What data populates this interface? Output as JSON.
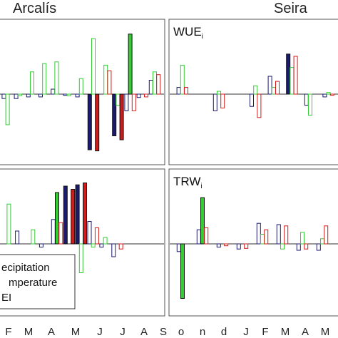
{
  "header": {
    "left_title": "Arcalís",
    "right_title": "Seira"
  },
  "legend": {
    "items": [
      "ecipitation",
      "mperature",
      "EI"
    ]
  },
  "chart_data": [
    {
      "type": "bar",
      "site": "Arcalís",
      "panel": "WUE",
      "months_visible": [
        "F",
        "M",
        "A",
        "M",
        "J",
        "J",
        "A",
        "S"
      ],
      "bars": [
        {
          "m": 0,
          "s": 0,
          "v": -0.08,
          "f": false
        },
        {
          "m": 0,
          "s": 1,
          "v": -0.55,
          "f": false
        },
        {
          "m": 1,
          "s": 0,
          "v": -0.08,
          "f": false
        },
        {
          "m": 1,
          "s": 1,
          "v": -0.03,
          "f": false
        },
        {
          "m": 2,
          "s": 0,
          "v": -0.05,
          "f": false
        },
        {
          "m": 2,
          "s": 1,
          "v": 0.4,
          "f": false
        },
        {
          "m": 3,
          "s": 0,
          "v": -0.05,
          "f": false
        },
        {
          "m": 3,
          "s": 1,
          "v": 0.55,
          "f": false
        },
        {
          "m": 4,
          "s": 0,
          "v": 0.09,
          "f": false
        },
        {
          "m": 4,
          "s": 1,
          "v": 0.58,
          "f": false
        },
        {
          "m": 5,
          "s": 0,
          "v": -0.02,
          "f": false
        },
        {
          "m": 5,
          "s": 1,
          "v": -0.03,
          "f": false
        },
        {
          "m": 6,
          "s": 0,
          "v": -0.05,
          "f": false
        },
        {
          "m": 6,
          "s": 1,
          "v": 0.28,
          "f": false
        },
        {
          "m": 7,
          "s": 0,
          "v": -1.0,
          "f": true
        },
        {
          "m": 7,
          "s": 1,
          "v": 1.0,
          "f": false
        },
        {
          "m": 7,
          "s": 2,
          "v": -1.02,
          "f": true
        },
        {
          "m": 8,
          "s": 0,
          "v": 0.0,
          "f": false
        },
        {
          "m": 8,
          "s": 1,
          "v": 0.52,
          "f": false
        },
        {
          "m": 8,
          "s": 2,
          "v": 0.42,
          "f": false
        },
        {
          "m": 9,
          "s": 0,
          "v": -0.75,
          "f": true
        },
        {
          "m": 9,
          "s": 1,
          "v": -0.2,
          "f": false
        },
        {
          "m": 9,
          "s": 2,
          "v": -0.82,
          "f": true
        },
        {
          "m": 10,
          "s": 0,
          "v": -0.3,
          "f": false
        },
        {
          "m": 10,
          "s": 1,
          "v": 1.08,
          "f": true
        },
        {
          "m": 10,
          "s": 2,
          "v": -0.3,
          "f": false
        },
        {
          "m": 11,
          "s": 0,
          "v": -0.06,
          "f": false
        },
        {
          "m": 11,
          "s": 1,
          "v": 0.0,
          "f": false
        },
        {
          "m": 11,
          "s": 2,
          "v": -0.05,
          "f": false
        },
        {
          "m": 12,
          "s": 0,
          "v": 0.25,
          "f": false
        },
        {
          "m": 12,
          "s": 1,
          "v": 0.4,
          "f": false
        },
        {
          "m": 12,
          "s": 2,
          "v": 0.35,
          "f": false
        }
      ]
    },
    {
      "type": "bar",
      "site": "Seira",
      "panel": "WUE",
      "bars": [
        {
          "m": 0,
          "s": 0,
          "v": 0.12,
          "f": false
        },
        {
          "m": 0,
          "s": 1,
          "v": 0.52,
          "f": false
        },
        {
          "m": 0,
          "s": 2,
          "v": 0.12,
          "f": false
        },
        {
          "m": 1,
          "s": 0,
          "v": 0.0,
          "f": false
        },
        {
          "m": 1,
          "s": 1,
          "v": 0.0,
          "f": false
        },
        {
          "m": 1,
          "s": 2,
          "v": 0.0,
          "f": false
        },
        {
          "m": 2,
          "s": 0,
          "v": -0.3,
          "f": false
        },
        {
          "m": 2,
          "s": 1,
          "v": 0.05,
          "f": false
        },
        {
          "m": 2,
          "s": 2,
          "v": -0.25,
          "f": false
        },
        {
          "m": 3,
          "s": 0,
          "v": 0.0,
          "f": false
        },
        {
          "m": 3,
          "s": 1,
          "v": 0.0,
          "f": false
        },
        {
          "m": 3,
          "s": 2,
          "v": 0.0,
          "f": false
        },
        {
          "m": 4,
          "s": 0,
          "v": -0.22,
          "f": false
        },
        {
          "m": 4,
          "s": 1,
          "v": 0.15,
          "f": false
        },
        {
          "m": 4,
          "s": 2,
          "v": -0.42,
          "f": false
        },
        {
          "m": 5,
          "s": 0,
          "v": 0.32,
          "f": false
        },
        {
          "m": 5,
          "s": 1,
          "v": 0.12,
          "f": false
        },
        {
          "m": 5,
          "s": 2,
          "v": 0.23,
          "f": false
        },
        {
          "m": 6,
          "s": 0,
          "v": 0.72,
          "f": true
        },
        {
          "m": 6,
          "s": 1,
          "v": 0.48,
          "f": false
        },
        {
          "m": 6,
          "s": 2,
          "v": 0.68,
          "f": false
        },
        {
          "m": 7,
          "s": 0,
          "v": -0.2,
          "f": false
        },
        {
          "m": 7,
          "s": 1,
          "v": -0.38,
          "f": false
        },
        {
          "m": 7,
          "s": 2,
          "v": 0.0,
          "f": false
        },
        {
          "m": 8,
          "s": 0,
          "v": -0.05,
          "f": false
        },
        {
          "m": 8,
          "s": 1,
          "v": 0.03,
          "f": false
        },
        {
          "m": 8,
          "s": 2,
          "v": -0.02,
          "f": false
        }
      ]
    },
    {
      "type": "bar",
      "site": "Arcalís",
      "panel": "TRW",
      "bars": [
        {
          "m": 0,
          "s": 0,
          "v": 0.0,
          "f": false
        },
        {
          "m": 0,
          "s": 1,
          "v": 0.62,
          "f": false
        },
        {
          "m": 0,
          "s": 2,
          "v": 0.0,
          "f": false
        },
        {
          "m": 1,
          "s": 0,
          "v": 0.2,
          "f": false
        },
        {
          "m": 1,
          "s": 1,
          "v": 0.0,
          "f": false
        },
        {
          "m": 1,
          "s": 2,
          "v": 0.0,
          "f": false
        },
        {
          "m": 2,
          "s": 0,
          "v": 0.0,
          "f": false
        },
        {
          "m": 2,
          "s": 1,
          "v": 0.22,
          "f": false
        },
        {
          "m": 2,
          "s": 2,
          "v": 0.0,
          "f": false
        },
        {
          "m": 3,
          "s": 0,
          "v": -0.05,
          "f": false
        },
        {
          "m": 3,
          "s": 1,
          "v": 0.0,
          "f": false
        },
        {
          "m": 3,
          "s": 2,
          "v": 0.0,
          "f": false
        },
        {
          "m": 4,
          "s": 0,
          "v": 0.38,
          "f": false
        },
        {
          "m": 4,
          "s": 1,
          "v": 0.8,
          "f": true
        },
        {
          "m": 4,
          "s": 2,
          "v": 0.33,
          "f": false
        },
        {
          "m": 5,
          "s": 0,
          "v": 0.9,
          "f": true
        },
        {
          "m": 5,
          "s": 1,
          "v": 0.0,
          "f": false
        },
        {
          "m": 5,
          "s": 2,
          "v": 0.85,
          "f": true
        },
        {
          "m": 6,
          "s": 0,
          "v": 0.92,
          "f": true
        },
        {
          "m": 6,
          "s": 1,
          "v": -0.45,
          "f": false
        },
        {
          "m": 6,
          "s": 2,
          "v": 0.95,
          "f": true
        },
        {
          "m": 7,
          "s": 0,
          "v": 0.35,
          "f": false
        },
        {
          "m": 7,
          "s": 1,
          "v": -0.05,
          "f": false
        },
        {
          "m": 7,
          "s": 2,
          "v": 0.25,
          "f": false
        },
        {
          "m": 8,
          "s": 0,
          "v": -0.05,
          "f": false
        },
        {
          "m": 8,
          "s": 1,
          "v": 0.1,
          "f": false
        },
        {
          "m": 8,
          "s": 2,
          "v": 0.0,
          "f": false
        },
        {
          "m": 9,
          "s": 0,
          "v": -0.2,
          "f": false
        },
        {
          "m": 9,
          "s": 1,
          "v": 0.0,
          "f": false
        },
        {
          "m": 9,
          "s": 2,
          "v": -0.08,
          "f": false
        }
      ]
    },
    {
      "type": "bar",
      "site": "Seira",
      "panel": "TRW",
      "bars": [
        {
          "m": 0,
          "s": 0,
          "v": -0.12,
          "f": false
        },
        {
          "m": 0,
          "s": 1,
          "v": -0.85,
          "f": true
        },
        {
          "m": 0,
          "s": 2,
          "v": 0.0,
          "f": false
        },
        {
          "m": 1,
          "s": 0,
          "v": 0.22,
          "f": false
        },
        {
          "m": 1,
          "s": 1,
          "v": 0.72,
          "f": true
        },
        {
          "m": 1,
          "s": 2,
          "v": 0.25,
          "f": false
        },
        {
          "m": 2,
          "s": 0,
          "v": -0.05,
          "f": false
        },
        {
          "m": 2,
          "s": 1,
          "v": 0.0,
          "f": false
        },
        {
          "m": 2,
          "s": 2,
          "v": -0.03,
          "f": false
        },
        {
          "m": 3,
          "s": 0,
          "v": -0.08,
          "f": false
        },
        {
          "m": 3,
          "s": 1,
          "v": 0.0,
          "f": false
        },
        {
          "m": 3,
          "s": 2,
          "v": -0.07,
          "f": false
        },
        {
          "m": 4,
          "s": 0,
          "v": 0.32,
          "f": false
        },
        {
          "m": 4,
          "s": 1,
          "v": 0.15,
          "f": false
        },
        {
          "m": 4,
          "s": 2,
          "v": 0.22,
          "f": false
        },
        {
          "m": 5,
          "s": 0,
          "v": 0.3,
          "f": false
        },
        {
          "m": 5,
          "s": 1,
          "v": -0.08,
          "f": false
        },
        {
          "m": 5,
          "s": 2,
          "v": 0.28,
          "f": false
        },
        {
          "m": 6,
          "s": 0,
          "v": -0.1,
          "f": false
        },
        {
          "m": 6,
          "s": 1,
          "v": 0.18,
          "f": false
        },
        {
          "m": 6,
          "s": 2,
          "v": -0.08,
          "f": false
        },
        {
          "m": 7,
          "s": 0,
          "v": -0.1,
          "f": false
        },
        {
          "m": 7,
          "s": 1,
          "v": 0.08,
          "f": false
        },
        {
          "m": 7,
          "s": 2,
          "v": 0.28,
          "f": false
        }
      ]
    }
  ],
  "panels": [
    {
      "label": "WUE",
      "sub": "i"
    },
    {
      "label": "TRW",
      "sub": "i"
    }
  ],
  "x_ticks": {
    "arcalis": [
      "F",
      "M",
      "A",
      "M",
      "J",
      "J",
      "A",
      "S"
    ],
    "seira": [
      "o",
      "n",
      "d",
      "J",
      "F",
      "M",
      "A",
      "M"
    ]
  },
  "series_colors": [
    "#1a1a6e",
    "#33cc33",
    "#d41a1a"
  ]
}
